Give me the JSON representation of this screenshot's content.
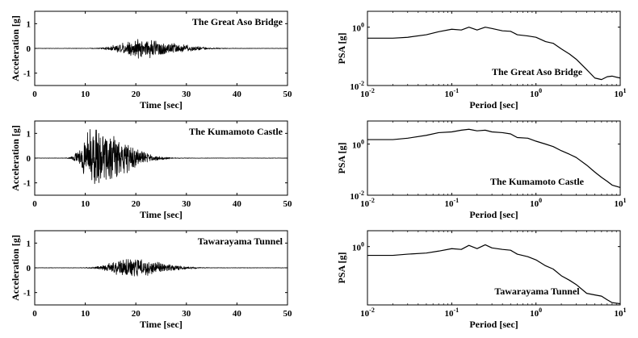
{
  "chart_data": [
    {
      "type": "line",
      "kind": "time-history",
      "row": 0,
      "xlabel": "Time [sec]",
      "ylabel": "Acceleration [g]",
      "annotation": "The Great Aso Bridge",
      "xlim": [
        0,
        50
      ],
      "ylim": [
        -1.5,
        1.5
      ],
      "xticks": [
        0,
        10,
        20,
        30,
        40,
        50
      ],
      "yticks": [
        -1,
        0,
        1
      ],
      "signal": {
        "duration": 50,
        "samples": 1000,
        "start": 3,
        "peak_time": 21,
        "peak_amplitude": 0.42,
        "rise_width": 5,
        "decay_width": 9
      }
    },
    {
      "type": "line",
      "kind": "response-spectrum",
      "row": 0,
      "xlabel": "Period [sec]",
      "ylabel": "PSA [g]",
      "annotation": "The Great Aso Bridge",
      "xscale": "log",
      "yscale": "log",
      "xlim": [
        0.01,
        10
      ],
      "ylim": [
        0.01,
        3.5
      ],
      "xticks": [
        0.01,
        0.1,
        1,
        10
      ],
      "yticks": [
        0.01,
        1
      ],
      "x": [
        0.01,
        0.02,
        0.03,
        0.05,
        0.07,
        0.1,
        0.13,
        0.16,
        0.2,
        0.25,
        0.3,
        0.4,
        0.5,
        0.6,
        0.8,
        1.0,
        1.3,
        1.6,
        2.0,
        2.5,
        3.0,
        4.0,
        5.0,
        6.0,
        7.0,
        8.0,
        10.0
      ],
      "y": [
        0.42,
        0.42,
        0.45,
        0.55,
        0.7,
        0.85,
        0.8,
        1.0,
        0.8,
        1.0,
        0.9,
        0.75,
        0.72,
        0.55,
        0.5,
        0.45,
        0.32,
        0.28,
        0.18,
        0.12,
        0.08,
        0.035,
        0.018,
        0.016,
        0.02,
        0.021,
        0.018
      ]
    },
    {
      "type": "line",
      "kind": "time-history",
      "row": 1,
      "xlabel": "Time [sec]",
      "ylabel": "Acceleration [g]",
      "annotation": "The Kumamoto Castle",
      "xlim": [
        0,
        50
      ],
      "ylim": [
        -1.5,
        1.5
      ],
      "xticks": [
        0,
        10,
        20,
        30,
        40,
        50
      ],
      "yticks": [
        -1,
        0,
        1
      ],
      "signal": {
        "duration": 50,
        "samples": 1000,
        "start": 3,
        "peak_time": 11.5,
        "peak_amplitude": 1.35,
        "rise_width": 2.5,
        "decay_width": 8
      }
    },
    {
      "type": "line",
      "kind": "response-spectrum",
      "row": 1,
      "xlabel": "Period [sec]",
      "ylabel": "PSA [g]",
      "annotation": "The Kumamoto Castle",
      "xscale": "log",
      "yscale": "log",
      "xlim": [
        0.01,
        10
      ],
      "ylim": [
        0.01,
        8
      ],
      "xticks": [
        0.01,
        0.1,
        1,
        10
      ],
      "yticks": [
        0.01,
        1
      ],
      "x": [
        0.01,
        0.02,
        0.03,
        0.05,
        0.07,
        0.1,
        0.13,
        0.16,
        0.2,
        0.25,
        0.3,
        0.4,
        0.5,
        0.6,
        0.8,
        1.0,
        1.3,
        1.6,
        2.0,
        2.5,
        3.0,
        4.0,
        5.0,
        6.0,
        7.0,
        8.0,
        10.0
      ],
      "y": [
        1.5,
        1.5,
        1.7,
        2.2,
        2.8,
        3.0,
        3.5,
        3.8,
        3.3,
        3.5,
        3.0,
        2.8,
        2.5,
        1.8,
        1.7,
        1.3,
        1.0,
        0.8,
        0.55,
        0.4,
        0.3,
        0.15,
        0.08,
        0.05,
        0.035,
        0.025,
        0.02
      ]
    },
    {
      "type": "line",
      "kind": "time-history",
      "row": 2,
      "xlabel": "Time [sec]",
      "ylabel": "Acceleration [g]",
      "annotation": "Tawarayama Tunnel",
      "xlim": [
        0,
        50
      ],
      "ylim": [
        -1.5,
        1.5
      ],
      "xticks": [
        0,
        10,
        20,
        30,
        40,
        50
      ],
      "yticks": [
        -1,
        0,
        1
      ],
      "signal": {
        "duration": 50,
        "samples": 1000,
        "start": 3,
        "peak_time": 19,
        "peak_amplitude": 0.4,
        "rise_width": 5,
        "decay_width": 8
      }
    },
    {
      "type": "line",
      "kind": "response-spectrum",
      "row": 2,
      "xlabel": "Period [sec]",
      "ylabel": "PSA [g]",
      "annotation": "Tawarayama Tunnel",
      "xscale": "log",
      "yscale": "log",
      "xlim": [
        0.01,
        10
      ],
      "ylim": [
        0.01,
        3.5
      ],
      "xticks": [
        0.01,
        0.1,
        1,
        10
      ],
      "yticks": [
        1
      ],
      "x": [
        0.01,
        0.02,
        0.03,
        0.05,
        0.07,
        0.1,
        0.13,
        0.16,
        0.2,
        0.25,
        0.3,
        0.4,
        0.5,
        0.6,
        0.8,
        1.0,
        1.3,
        1.6,
        2.0,
        2.5,
        3.0,
        4.0,
        5.0,
        6.0,
        7.0,
        8.0,
        10.0
      ],
      "y": [
        0.5,
        0.5,
        0.55,
        0.6,
        0.7,
        0.85,
        0.8,
        1.1,
        0.85,
        1.15,
        0.9,
        0.8,
        0.75,
        0.55,
        0.45,
        0.35,
        0.22,
        0.17,
        0.1,
        0.07,
        0.05,
        0.025,
        0.022,
        0.02,
        0.015,
        0.012,
        0.011
      ]
    }
  ]
}
